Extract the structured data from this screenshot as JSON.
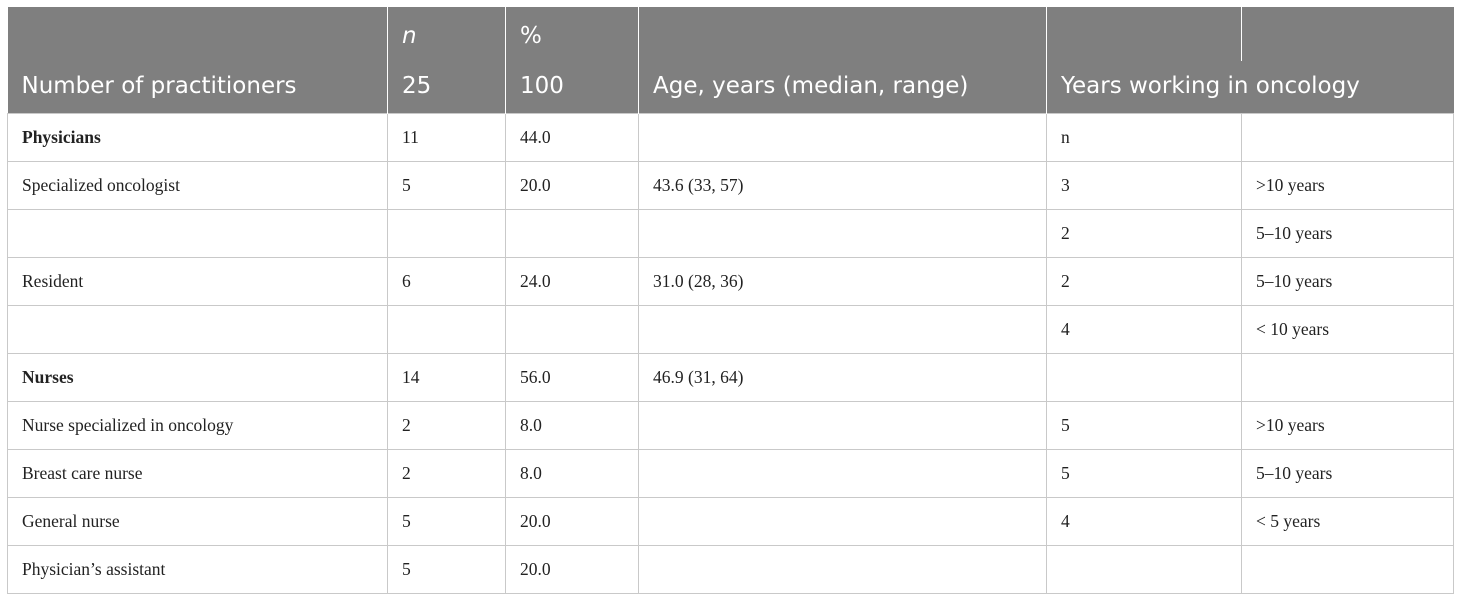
{
  "header": {
    "row1": [
      "",
      "n",
      "%",
      "",
      "",
      ""
    ],
    "row2": {
      "col1": "Number of practitioners",
      "col2": "25",
      "col3": "100",
      "col4": "Age, years (median, range)",
      "col5": "Years working in oncology"
    }
  },
  "rows": [
    {
      "c1": "Physicians",
      "c2": "11",
      "c3": "44.0",
      "c4": "",
      "c5": "n",
      "c6": "",
      "bold": true
    },
    {
      "c1": "Specialized oncologist",
      "c2": "5",
      "c3": "20.0",
      "c4": "43.6 (33, 57)",
      "c5": "3",
      "c6": ">10 years"
    },
    {
      "c1": "",
      "c2": "",
      "c3": "",
      "c4": "",
      "c5": "2",
      "c6": "5–10 years"
    },
    {
      "c1": "Resident",
      "c2": "6",
      "c3": "24.0",
      "c4": "31.0 (28, 36)",
      "c5": "2",
      "c6": "5–10 years"
    },
    {
      "c1": "",
      "c2": "",
      "c3": "",
      "c4": "",
      "c5": "4",
      "c6": "< 10 years"
    },
    {
      "c1": "Nurses",
      "c2": "14",
      "c3": "56.0",
      "c4": "46.9 (31, 64)",
      "c5": "",
      "c6": "",
      "bold": true
    },
    {
      "c1": "Nurse specialized in oncology",
      "c2": "2",
      "c3": "8.0",
      "c4": "",
      "c5": "5",
      "c6": ">10 years"
    },
    {
      "c1": "Breast care nurse",
      "c2": "2",
      "c3": "8.0",
      "c4": "",
      "c5": "5",
      "c6": "5–10 years"
    },
    {
      "c1": "General nurse",
      "c2": "5",
      "c3": "20.0",
      "c4": "",
      "c5": "4",
      "c6": "< 5 years"
    },
    {
      "c1": "Physician’s assistant",
      "c2": "5",
      "c3": "20.0",
      "c4": "",
      "c5": "",
      "c6": ""
    }
  ]
}
